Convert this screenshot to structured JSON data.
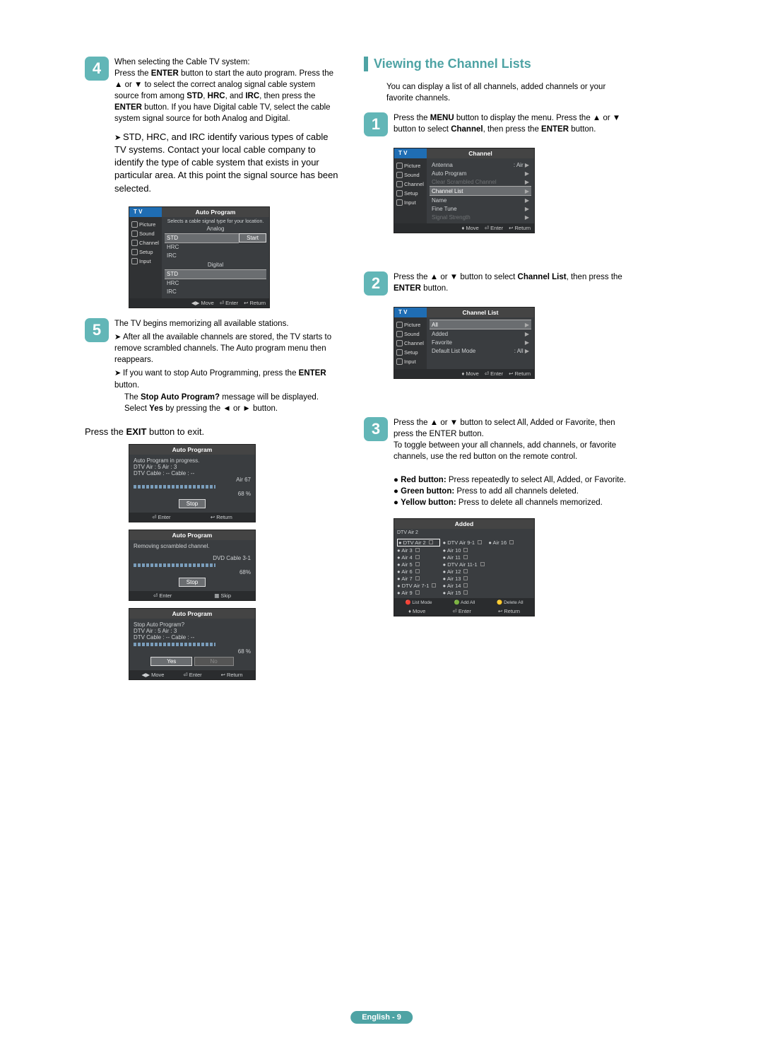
{
  "pageLabel": "English - 9",
  "left": {
    "step4": {
      "num": "4",
      "t1": "When selecting the Cable TV system:",
      "t2a": "Press the ",
      "t2b": "ENTER",
      "t2c": " button to start the auto program. Press the ▲ or ▼ to select the correct analog signal cable system source from among ",
      "t2d": "STD",
      "t2e": ", ",
      "t2f": "HRC",
      "t2g": ", and ",
      "t2h": "IRC",
      "t2i": ", then press the ",
      "t2j": "ENTER",
      "t2k": " button. If you have Digital cable TV, select the cable system signal source for both Analog and Digital.",
      "arrow1": "STD, HRC, and IRC identify various types of cable TV systems. Contact your local cable company to identify the type of cable system that exists in your particular area. At this point the signal source has been selected."
    },
    "osd4": {
      "tv": "T V",
      "title": "Auto Program",
      "hint": "Selects a cable signal type for your location.",
      "analog": "Analog",
      "opts": [
        "STD",
        "HRC",
        "IRC"
      ],
      "digital": "Digital",
      "start": "Start",
      "side": [
        "Picture",
        "Sound",
        "Channel",
        "Setup",
        "Input"
      ],
      "foot": {
        "move": "Move",
        "enter": "Enter",
        "return": "Return"
      }
    },
    "step5": {
      "num": "5",
      "t1": "The TV begins memorizing all available stations.",
      "arrow1": "After all the available channels are stored, the TV starts to remove scrambled channels. The Auto program menu then reappears.",
      "arrow2a": "If you want to stop Auto Programming, press the ",
      "arrow2b": "ENTER",
      "arrow2c": " button.",
      "t2a": "The ",
      "t2b": "Stop Auto Program?",
      "t2c": " message will be displayed. Select ",
      "t2d": "Yes",
      "t2e": " by pressing the ◄ or ► button.",
      "exit_a": "Press the ",
      "exit_b": "EXIT",
      "exit_c": " button to exit."
    },
    "osd5a": {
      "title": "Auto Program",
      "l1": "Auto Program in progress.",
      "l2": "DTV Air : 5      Air : 3",
      "l3": "DTV Cable : --   Cable : --",
      "r1": "Air 67",
      "r2": "68 %",
      "stop": "Stop",
      "foot": {
        "enter": "Enter",
        "return": "Return"
      }
    },
    "osd5b": {
      "title": "Auto Program",
      "l1": "Removing scrambled channel.",
      "r1": "DVD Cable 3-1",
      "r2": "68%",
      "stop": "Stop",
      "foot": {
        "enter": "Enter",
        "skip": "Skip"
      }
    },
    "osd5c": {
      "title": "Auto Program",
      "l1": "Stop Auto Program?",
      "l2": "DTV Air : 5      Air : 3",
      "l3": "DTV Cable : --   Cable : --",
      "r2": "68 %",
      "yes": "Yes",
      "no": "No",
      "foot": {
        "move": "Move",
        "enter": "Enter",
        "return": "Return"
      }
    }
  },
  "right": {
    "title": "Viewing the Channel Lists",
    "intro": "You can display a list of all channels, added channels or your favorite channels.",
    "step1": {
      "num": "1",
      "t1a": "Press the ",
      "t1b": "MENU",
      "t1c": " button to display the menu. Press the ▲ or ▼ button to select ",
      "t1d": "Channel",
      "t1e": ", then press the ",
      "t1f": "ENTER",
      "t1g": " button."
    },
    "osd1": {
      "tv": "T V",
      "title": "Channel",
      "side": [
        "Picture",
        "Sound",
        "Channel",
        "Setup",
        "Input"
      ],
      "rows": [
        {
          "l": "Antenna",
          "r": ": Air",
          "arr": "▶"
        },
        {
          "l": "Auto Program",
          "r": "",
          "arr": "▶"
        },
        {
          "l": "Clear Scrambled Channel",
          "r": "",
          "arr": "▶",
          "dim": true
        },
        {
          "l": "Channel List",
          "r": "",
          "arr": "▶",
          "hl": true
        },
        {
          "l": "Name",
          "r": "",
          "arr": "▶"
        },
        {
          "l": "Fine Tune",
          "r": "",
          "arr": "▶"
        },
        {
          "l": "Signal Strength",
          "r": "",
          "arr": "▶",
          "dim": true
        }
      ],
      "foot": {
        "move": "Move",
        "enter": "Enter",
        "return": "Return"
      }
    },
    "step2": {
      "num": "2",
      "t1a": "Press the ▲ or ▼ button to select ",
      "t1b": "Channel List",
      "t1c": ", then press the ",
      "t1d": "ENTER",
      "t1e": " button."
    },
    "osd2": {
      "tv": "T V",
      "title": "Channel List",
      "side": [
        "Picture",
        "Sound",
        "Channel",
        "Setup",
        "Input"
      ],
      "rows": [
        {
          "l": "All",
          "r": "",
          "arr": "▶",
          "hl": true
        },
        {
          "l": "Added",
          "r": "",
          "arr": "▶"
        },
        {
          "l": "Favorite",
          "r": "",
          "arr": "▶"
        },
        {
          "l": "Default List Mode",
          "r": ": All",
          "arr": "▶"
        }
      ],
      "foot": {
        "move": "Move",
        "enter": "Enter",
        "return": "Return"
      }
    },
    "step3": {
      "num": "3",
      "t1": "Press the ▲ or ▼ button to select All, Added or Favorite, then press the ENTER button.",
      "t2": "To toggle between your all channels, add channels, or favorite channels, use the red button on the remote control.",
      "b1a": "Red button:",
      "b1b": " Press repeatedly to select All, Added, or Favorite.",
      "b2a": "Green button:",
      "b2b": " Press to add all channels deleted.",
      "b3a": "Yellow button:",
      "b3b": " Press to delete all channels memorized."
    },
    "osd3": {
      "title": "Added",
      "sub": "DTV Air 2",
      "cols": [
        [
          "DTV Air 2",
          "Air 3",
          "Air 4",
          "Air 5",
          "Air 6",
          "Air 7",
          "DTV Air 7-1",
          "Air 9"
        ],
        [
          "DTV Air 9-1",
          "Air 10",
          "Air 11",
          "DTV Air 11-1",
          "Air 12",
          "Air 13",
          "Air 14",
          "Air 15"
        ],
        [
          "Air 16",
          "",
          "",
          "",
          "",
          "",
          "",
          ""
        ]
      ],
      "legend": {
        "list": "List Mode",
        "add": "Add All",
        "del": "Delete All"
      },
      "foot": {
        "move": "Move",
        "enter": "Enter",
        "return": "Return"
      }
    }
  }
}
